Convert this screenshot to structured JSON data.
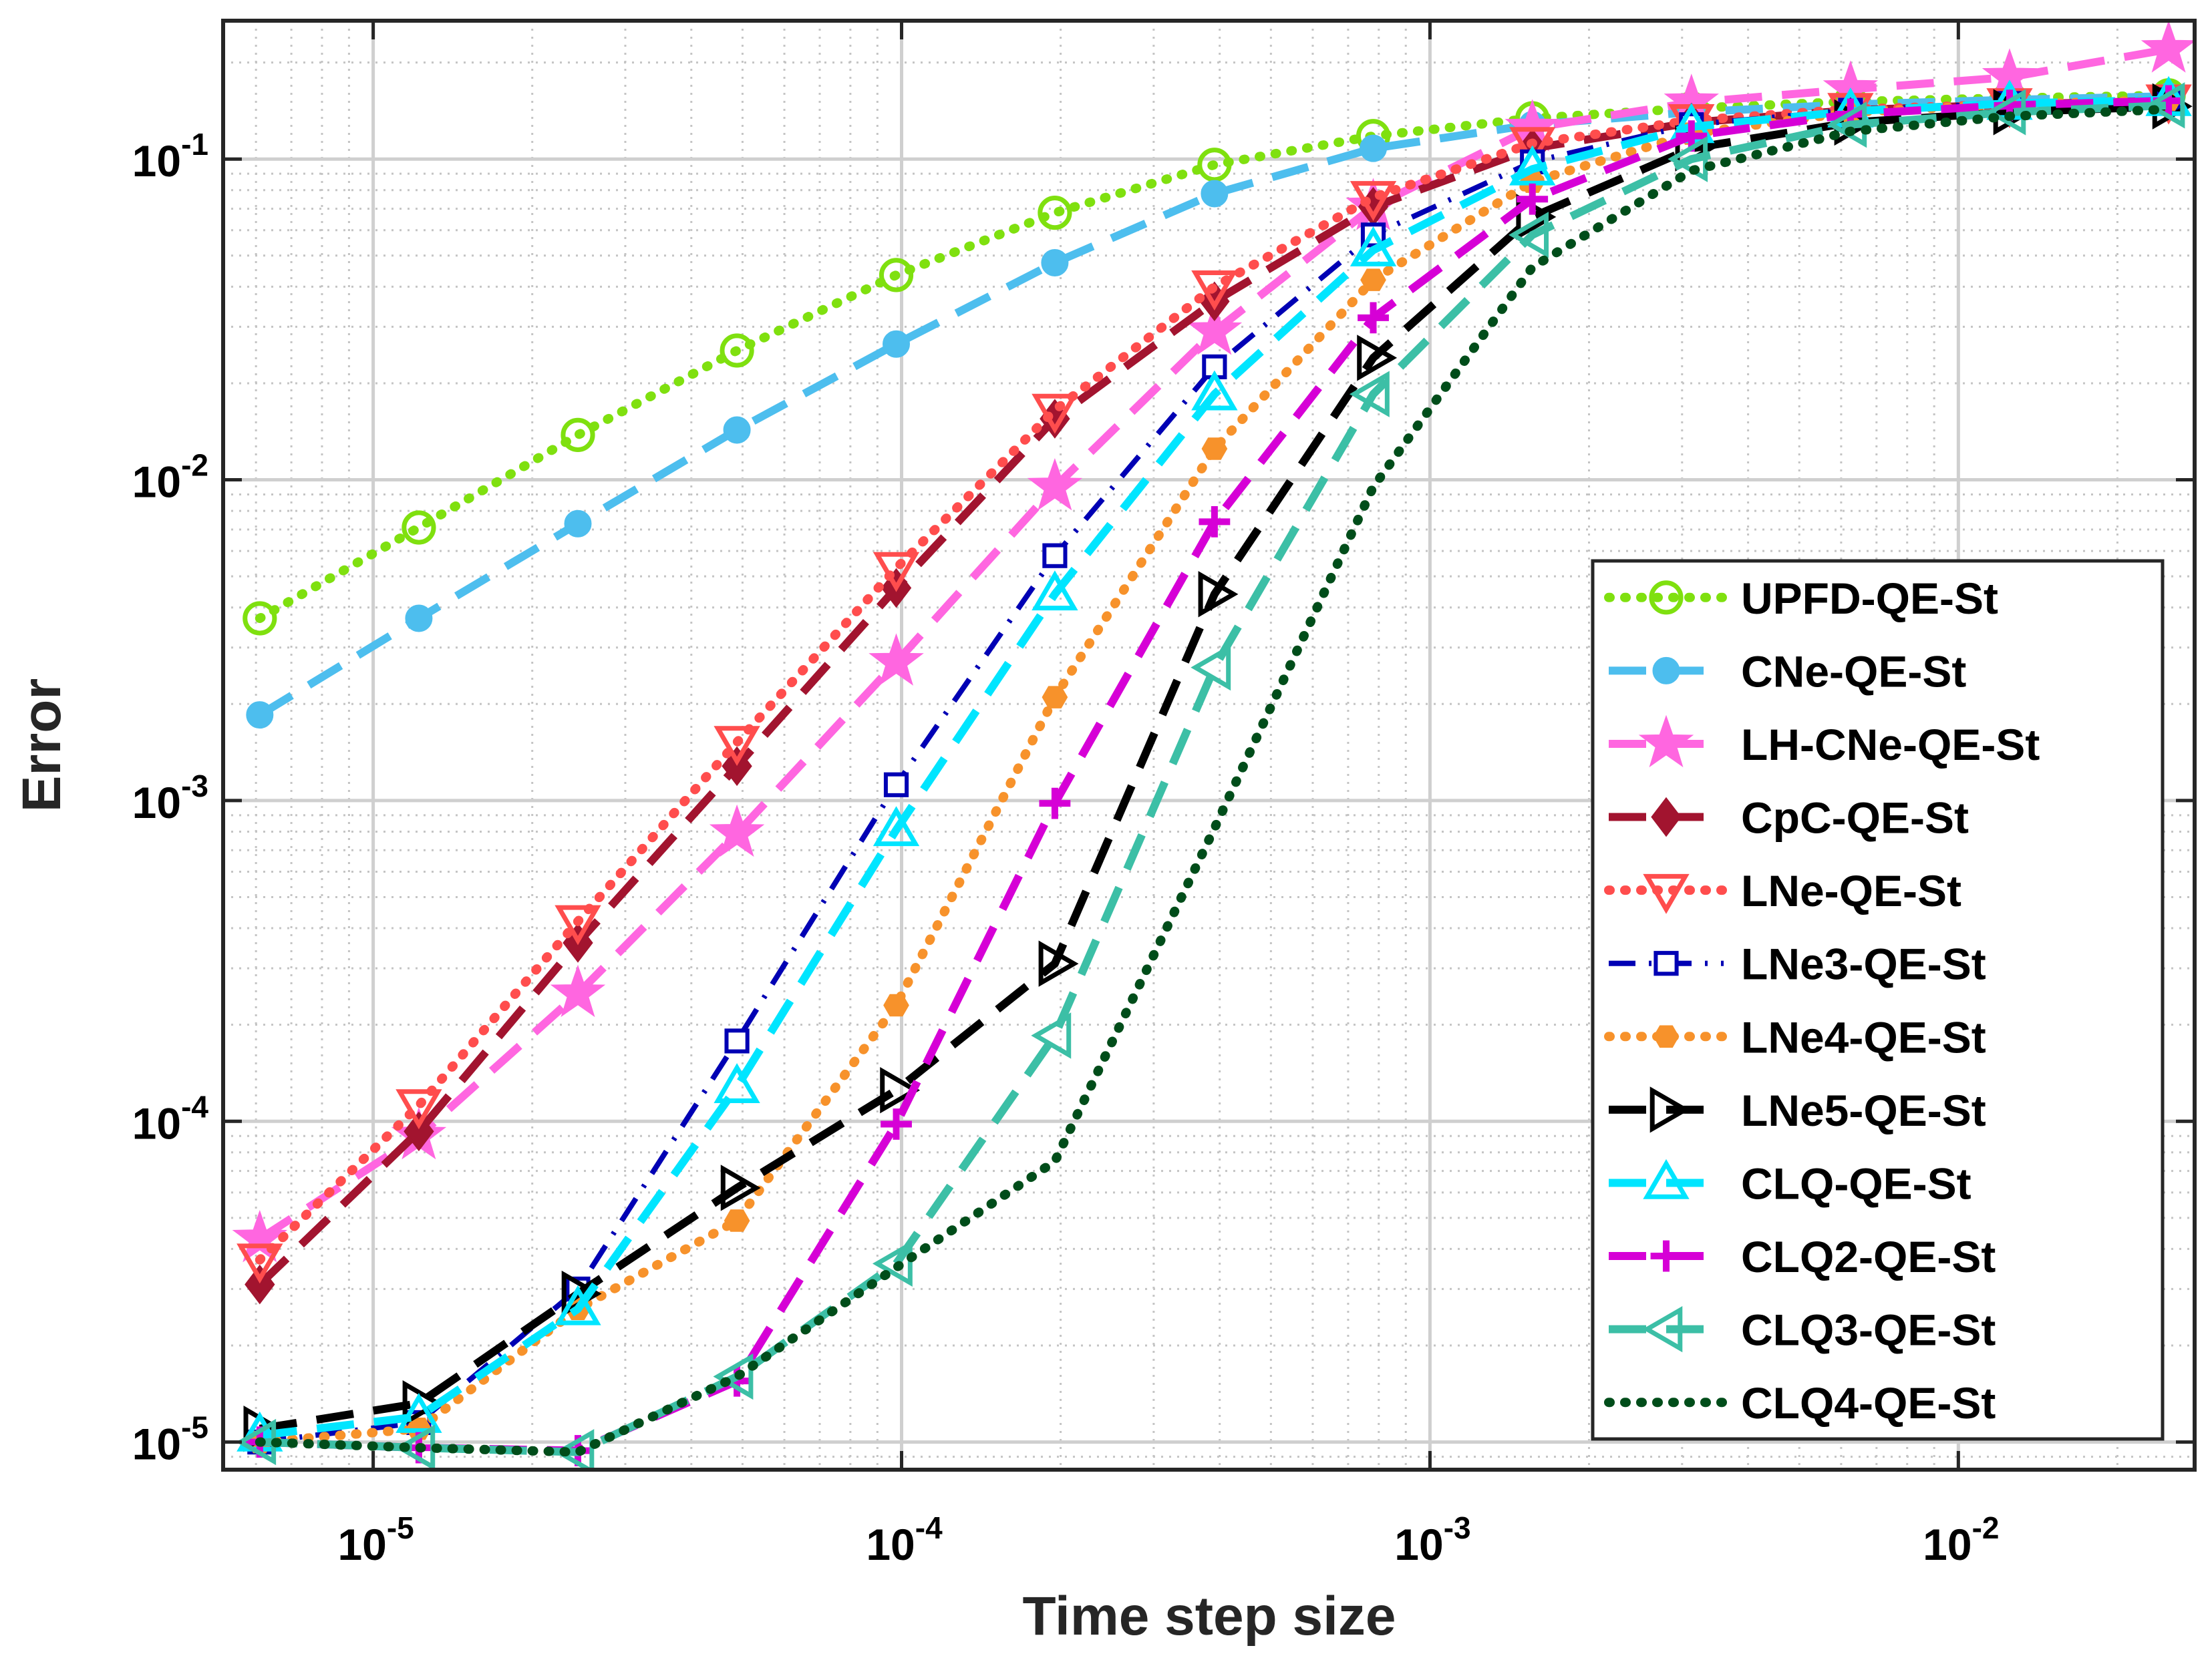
{
  "chart_data": {
    "type": "line",
    "xscale": "log",
    "yscale": "log",
    "xlabel": "Time step size",
    "ylabel": "Error",
    "xlim": [
      5.2e-06,
      0.028
    ],
    "ylim": [
      8.2e-06,
      0.27
    ],
    "xticks": [
      {
        "value": 1e-05,
        "base": "10",
        "exp": "-5"
      },
      {
        "value": 0.0001,
        "base": "10",
        "exp": "-4"
      },
      {
        "value": 0.001,
        "base": "10",
        "exp": "-3"
      },
      {
        "value": 0.01,
        "base": "10",
        "exp": "-2"
      }
    ],
    "yticks": [
      {
        "value": 1e-05,
        "base": "10",
        "exp": "-5"
      },
      {
        "value": 0.0001,
        "base": "10",
        "exp": "-4"
      },
      {
        "value": 0.001,
        "base": "10",
        "exp": "-3"
      },
      {
        "value": 0.01,
        "base": "10",
        "exp": "-2"
      },
      {
        "value": 0.1,
        "base": "10",
        "exp": "-1"
      }
    ],
    "grid": true,
    "legend_position": "bottom-right",
    "x": [
      6.1e-06,
      1.22e-05,
      2.44e-05,
      4.88e-05,
      9.77e-05,
      0.000195,
      0.000391,
      0.000781,
      0.0015625,
      0.003125,
      0.00625,
      0.0125,
      0.025
    ],
    "series": [
      {
        "name": "UPFD-QE-St",
        "color": "#7fe00f",
        "dash": "dot",
        "marker": "circle",
        "values": [
          0.0037,
          0.0071,
          0.0138,
          0.0253,
          0.0435,
          0.068,
          0.096,
          0.118,
          0.134,
          0.144,
          0.151,
          0.155,
          0.158
        ]
      },
      {
        "name": "CNe-QE-St",
        "color": "#4dbeee",
        "dash": "dash",
        "marker": "dot",
        "values": [
          0.00185,
          0.0037,
          0.0073,
          0.0143,
          0.0265,
          0.0475,
          0.078,
          0.108,
          0.128,
          0.14,
          0.148,
          0.153,
          0.157
        ]
      },
      {
        "name": "LH-CNe-QE-St",
        "color": "#ff66e0",
        "dash": "dash",
        "marker": "star",
        "values": [
          4.3e-05,
          9e-05,
          0.00025,
          0.00079,
          0.0027,
          0.0095,
          0.029,
          0.071,
          0.125,
          0.15,
          0.165,
          0.18,
          0.22
        ]
      },
      {
        "name": "CpC-QE-St",
        "color": "#a2142f",
        "dash": "dash",
        "marker": "diamond",
        "values": [
          3.1e-05,
          9.3e-05,
          0.00036,
          0.00128,
          0.0046,
          0.0155,
          0.036,
          0.071,
          0.108,
          0.13,
          0.142,
          0.148,
          0.152
        ]
      },
      {
        "name": "LNe-QE-St",
        "color": "#ff4d4d",
        "dash": "dot",
        "marker": "triangle-down",
        "values": [
          3.7e-05,
          0.000112,
          0.00042,
          0.00152,
          0.0053,
          0.0165,
          0.04,
          0.076,
          0.112,
          0.132,
          0.143,
          0.148,
          0.152
        ]
      },
      {
        "name": "LNe3-QE-St",
        "color": "#0000b4",
        "dash": "dashdot",
        "marker": "square",
        "values": [
          1e-05,
          1.15e-05,
          3e-05,
          0.000178,
          0.00112,
          0.0058,
          0.0225,
          0.058,
          0.098,
          0.128,
          0.142,
          0.149,
          0.153
        ]
      },
      {
        "name": "LNe4-QE-St",
        "color": "#f7922b",
        "dash": "dot",
        "marker": "hexagon",
        "values": [
          1e-05,
          1.1e-05,
          2.6e-05,
          4.9e-05,
          0.00023,
          0.0021,
          0.0125,
          0.042,
          0.085,
          0.12,
          0.14,
          0.148,
          0.153
        ]
      },
      {
        "name": "LNe5-QE-St",
        "color": "#000000",
        "dash": "dash",
        "marker": "triangle-right",
        "values": [
          1.1e-05,
          1.32e-05,
          2.9e-05,
          6.2e-05,
          0.000125,
          0.00031,
          0.0044,
          0.024,
          0.066,
          0.108,
          0.13,
          0.14,
          0.146
        ]
      },
      {
        "name": "CLQ-QE-St",
        "color": "#00e5ff",
        "dash": "dash",
        "marker": "triangle-up",
        "values": [
          1.05e-05,
          1.2e-05,
          2.6e-05,
          0.000128,
          0.00081,
          0.0044,
          0.0185,
          0.052,
          0.093,
          0.126,
          0.141,
          0.149,
          0.153
        ]
      },
      {
        "name": "CLQ2-QE-St",
        "color": "#d600d6",
        "dash": "dash",
        "marker": "plus",
        "values": [
          1e-05,
          9.6e-06,
          9.4e-06,
          1.55e-05,
          9.8e-05,
          0.00098,
          0.0074,
          0.032,
          0.075,
          0.118,
          0.138,
          0.147,
          0.152
        ]
      },
      {
        "name": "CLQ3-QE-St",
        "color": "#3cbfa6",
        "dash": "dash",
        "marker": "triangle-left",
        "values": [
          1e-05,
          9.6e-06,
          9.3e-06,
          1.6e-05,
          3.6e-05,
          0.000185,
          0.0026,
          0.0185,
          0.058,
          0.1,
          0.128,
          0.14,
          0.147
        ]
      },
      {
        "name": "CLQ4-QE-St",
        "color": "#004d1a",
        "dash": "dot",
        "marker": "none",
        "values": [
          1e-05,
          9.6e-06,
          9.3e-06,
          1.6e-05,
          3.5e-05,
          7.5e-05,
          0.00082,
          0.0095,
          0.046,
          0.092,
          0.122,
          0.136,
          0.143
        ]
      }
    ]
  }
}
